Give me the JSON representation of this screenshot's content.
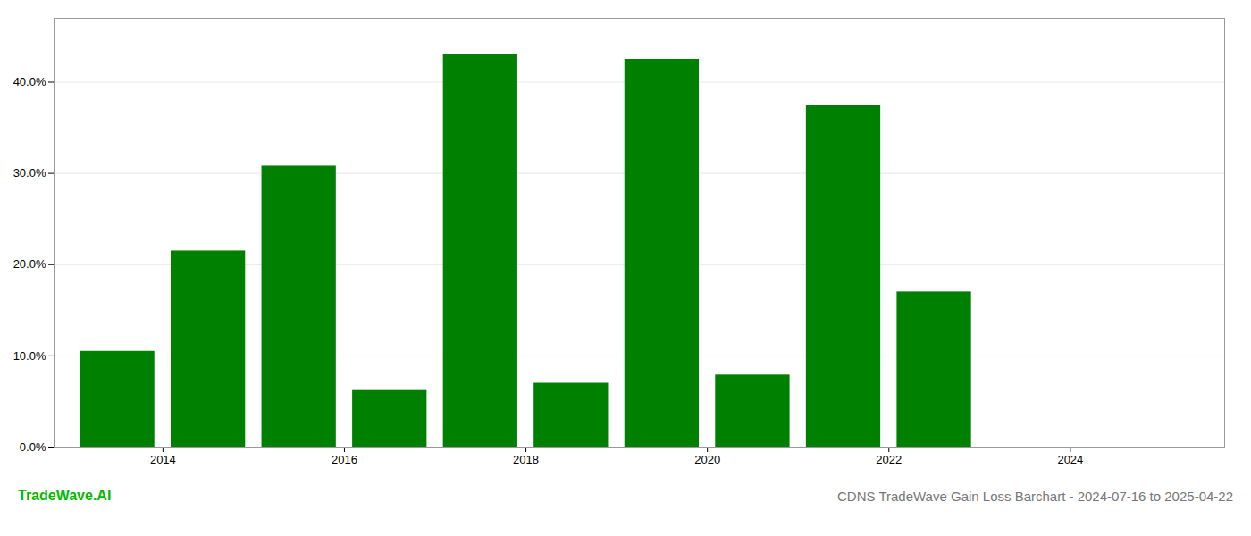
{
  "chart_data": {
    "type": "bar",
    "title": "CDNS TradeWave Gain Loss Barchart - 2024-07-16 to 2025-04-22",
    "annotations": [
      {
        "text": "TradeWave.AI",
        "color": "#00bb00"
      }
    ],
    "x": [
      2013,
      2014,
      2015,
      2016,
      2017,
      2018,
      2019,
      2020,
      2021,
      2022,
      2023
    ],
    "values": [
      0.105,
      0.215,
      0.308,
      0.062,
      0.43,
      0.07,
      0.425,
      0.079,
      0.375,
      0.17,
      0.0
    ],
    "color": "#008000",
    "xlim": [
      2012.3,
      2025.2
    ],
    "xticks": [
      {
        "value": 2013.5,
        "label": "2014"
      },
      {
        "value": 2015.5,
        "label": "2016"
      },
      {
        "value": 2017.5,
        "label": "2018"
      },
      {
        "value": 2019.5,
        "label": "2020"
      },
      {
        "value": 2021.5,
        "label": "2022"
      },
      {
        "value": 2023.5,
        "label": "2024"
      }
    ],
    "ylim": [
      0.0,
      0.47
    ],
    "yticks": [
      {
        "value": 0.0,
        "label": "0.0%"
      },
      {
        "value": 0.1,
        "label": "10.0%"
      },
      {
        "value": 0.2,
        "label": "20.0%"
      },
      {
        "value": 0.3,
        "label": "30.0%"
      },
      {
        "value": 0.4,
        "label": "40.0%"
      }
    ],
    "grid": true
  }
}
